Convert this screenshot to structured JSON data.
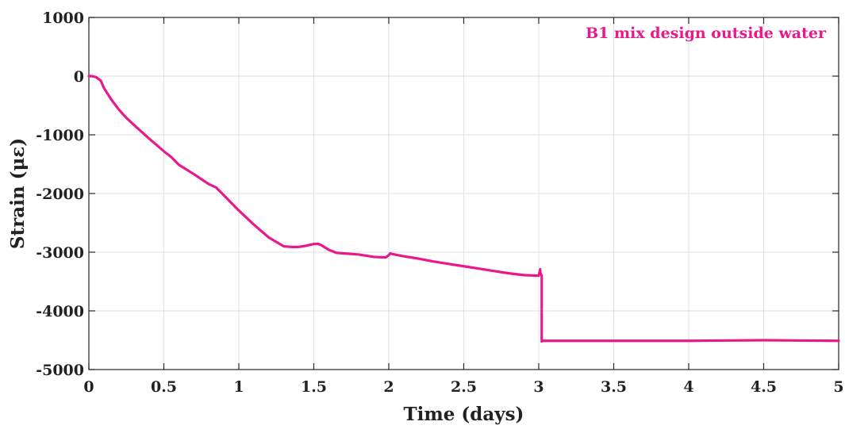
{
  "chart_data": {
    "type": "line",
    "title": "",
    "annotation": "B1 mix design outside water",
    "xlabel": "Time (days)",
    "ylabel": "Strain (με)",
    "xlim": [
      0,
      5
    ],
    "ylim": [
      -5000,
      1000
    ],
    "xticks": [
      0,
      0.5,
      1,
      1.5,
      2,
      2.5,
      3,
      3.5,
      4,
      4.5,
      5
    ],
    "xtick_labels": [
      "0",
      "0.5",
      "1",
      "1.5",
      "2",
      "2.5",
      "3",
      "3.5",
      "4",
      "4.5",
      "5"
    ],
    "yticks": [
      1000,
      0,
      -1000,
      -2000,
      -3000,
      -4000,
      -5000
    ],
    "ytick_labels": [
      "1000",
      "0",
      "-1000",
      "-2000",
      "-3000",
      "-4000",
      "-5000"
    ],
    "grid": true,
    "series_color": "#e8198b",
    "series": [
      {
        "x": [
          0,
          0.02,
          0.05,
          0.08,
          0.1,
          0.15,
          0.2,
          0.25,
          0.3,
          0.4,
          0.5,
          0.55,
          0.6,
          0.7,
          0.8,
          0.85,
          0.9,
          1.0,
          1.1,
          1.2,
          1.3,
          1.35,
          1.4,
          1.45,
          1.5,
          1.53,
          1.55,
          1.6,
          1.65,
          1.7,
          1.8,
          1.9,
          1.98,
          2.0,
          2.01,
          2.02,
          2.1,
          2.2,
          2.3,
          2.4,
          2.5,
          2.6,
          2.7,
          2.8,
          2.9,
          3.0,
          3.01,
          3.01,
          3.02,
          3.02,
          3.03,
          3.2,
          3.5,
          4.0,
          4.5,
          5.0
        ],
        "y": [
          0,
          0,
          -20,
          -80,
          -200,
          -400,
          -570,
          -710,
          -830,
          -1060,
          -1280,
          -1380,
          -1510,
          -1670,
          -1840,
          -1900,
          -2030,
          -2290,
          -2530,
          -2750,
          -2900,
          -2910,
          -2910,
          -2890,
          -2860,
          -2860,
          -2880,
          -2960,
          -3010,
          -3020,
          -3040,
          -3080,
          -3090,
          -3050,
          -3020,
          -3030,
          -3070,
          -3110,
          -3160,
          -3200,
          -3240,
          -3280,
          -3320,
          -3360,
          -3390,
          -3400,
          -3290,
          -3350,
          -3400,
          -4520,
          -4510,
          -4510,
          -4510,
          -4510,
          -4500,
          -4510
        ]
      }
    ]
  }
}
